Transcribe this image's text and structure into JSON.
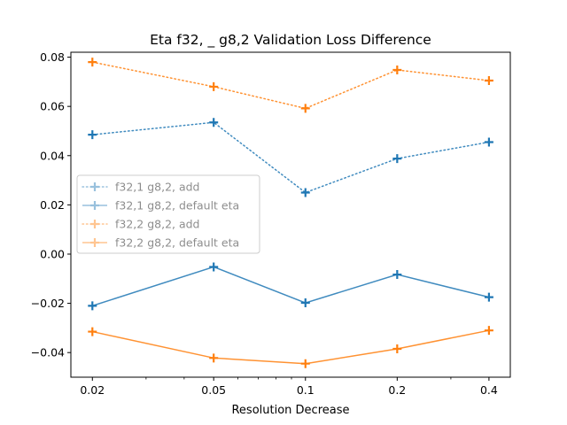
{
  "chart_data": {
    "type": "line",
    "title": "Eta f32, _ g8,2 Validation Loss Difference",
    "xlabel": "Resolution Decrease",
    "ylabel": "",
    "x_scale": "log",
    "x": [
      0.02,
      0.05,
      0.1,
      0.2,
      0.4
    ],
    "x_tick_labels": [
      "0.02",
      "0.05",
      "0.1",
      "0.2",
      "0.4"
    ],
    "ylim": [
      -0.05,
      0.082
    ],
    "y_ticks": [
      -0.04,
      -0.02,
      0.0,
      0.02,
      0.04,
      0.06,
      0.08
    ],
    "y_tick_labels": [
      "−0.04",
      "−0.02",
      "0.00",
      "0.02",
      "0.04",
      "0.06",
      "0.08"
    ],
    "grid": false,
    "legend_position": "center-left",
    "series": [
      {
        "name": "f32,1 g8,2, add",
        "color": "#1f77b4",
        "linestyle": "dotted",
        "marker": "plus",
        "values": [
          0.0485,
          0.0535,
          0.025,
          0.0388,
          0.0455
        ]
      },
      {
        "name": "f32,1 g8,2, default eta",
        "color": "#1f77b4",
        "linestyle": "solid",
        "marker": "plus",
        "values": [
          -0.021,
          -0.0052,
          -0.0198,
          -0.0083,
          -0.0175
        ]
      },
      {
        "name": "f32,2 g8,2, add",
        "color": "#ff7f0e",
        "linestyle": "dotted",
        "marker": "plus",
        "values": [
          0.078,
          0.068,
          0.0592,
          0.0748,
          0.0705
        ]
      },
      {
        "name": "f32,2 g8,2, default eta",
        "color": "#ff7f0e",
        "linestyle": "solid",
        "marker": "plus",
        "values": [
          -0.0315,
          -0.0422,
          -0.0445,
          -0.0385,
          -0.031
        ]
      }
    ]
  }
}
